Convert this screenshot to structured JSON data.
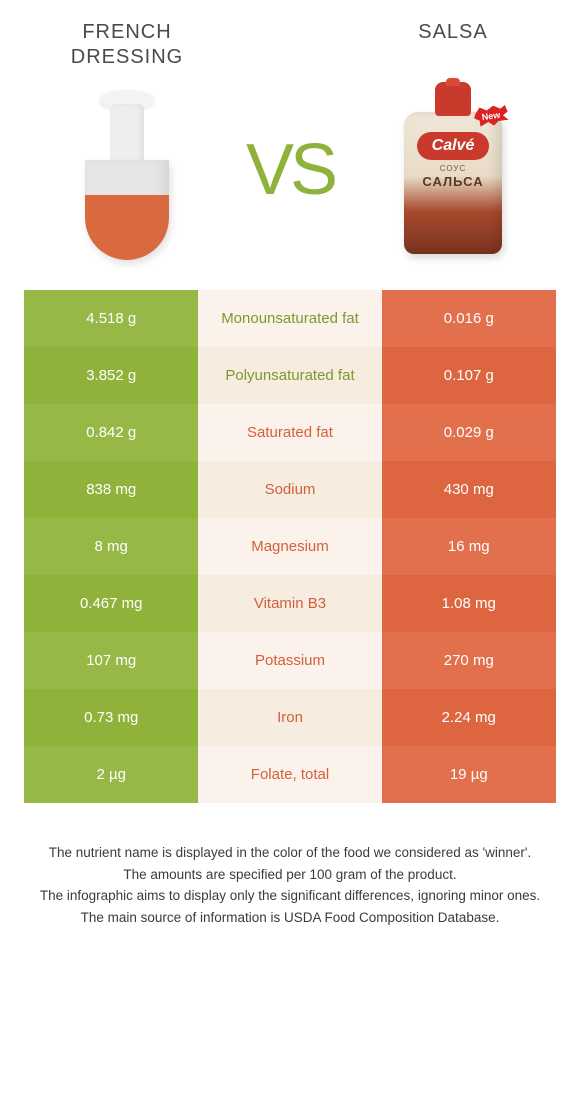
{
  "colors": {
    "left_bg": "#96b846",
    "left_bg_alt": "#8fb23b",
    "right_bg": "#e2704d",
    "right_bg_alt": "#dd6641",
    "mid_bg": "#fbf3eb",
    "mid_bg_alt": "#f6ece0",
    "winner_left_text": "#7a9a2e",
    "winner_right_text": "#d45f3a",
    "vs_color": "#8fb23b"
  },
  "headers": {
    "left": "French Dressing",
    "right": "Salsa"
  },
  "packet": {
    "new_label": "New",
    "brand": "Calvé",
    "line1": "СОУС",
    "line2": "САЛЬСА"
  },
  "vs_label": "VS",
  "rows": [
    {
      "left": "4.518 g",
      "label": "Monounsaturated fat",
      "right": "0.016 g",
      "winner": "left"
    },
    {
      "left": "3.852 g",
      "label": "Polyunsaturated fat",
      "right": "0.107 g",
      "winner": "left"
    },
    {
      "left": "0.842 g",
      "label": "Saturated fat",
      "right": "0.029 g",
      "winner": "right"
    },
    {
      "left": "838 mg",
      "label": "Sodium",
      "right": "430 mg",
      "winner": "right"
    },
    {
      "left": "8 mg",
      "label": "Magnesium",
      "right": "16 mg",
      "winner": "right"
    },
    {
      "left": "0.467 mg",
      "label": "Vitamin B3",
      "right": "1.08 mg",
      "winner": "right"
    },
    {
      "left": "107 mg",
      "label": "Potassium",
      "right": "270 mg",
      "winner": "right"
    },
    {
      "left": "0.73 mg",
      "label": "Iron",
      "right": "2.24 mg",
      "winner": "right"
    },
    {
      "left": "2 µg",
      "label": "Folate, total",
      "right": "19 µg",
      "winner": "right"
    }
  ],
  "footer": [
    "The nutrient name is displayed in the color of the food we considered as 'winner'.",
    "The amounts are specified per 100 gram of the product.",
    "The infographic aims to display only the significant differences, ignoring minor ones.",
    "The main source of information is USDA Food Composition Database."
  ]
}
